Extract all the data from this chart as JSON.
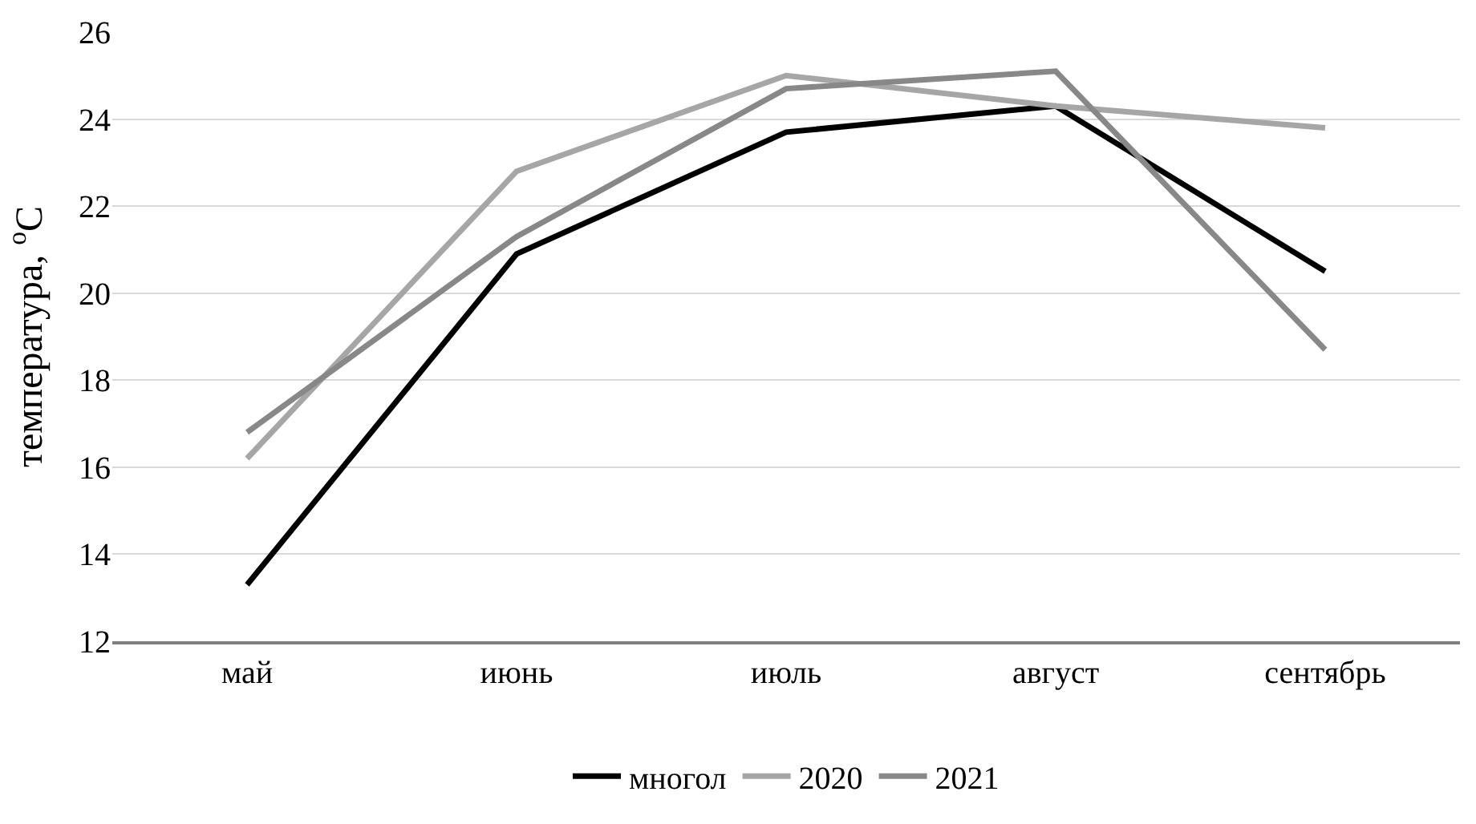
{
  "chart_data": {
    "type": "line",
    "ylabel": "температура, $^{о}$С",
    "categories": [
      "май",
      "июнь",
      "июль",
      "август",
      "сентябрь"
    ],
    "series": [
      {
        "name": "многол",
        "color": "#000000",
        "values": [
          13.3,
          20.9,
          23.7,
          24.3,
          20.5
        ]
      },
      {
        "name": "2020",
        "color": "#a6a6a6",
        "values": [
          16.2,
          22.8,
          25.0,
          24.3,
          23.8
        ]
      },
      {
        "name": "2021",
        "color": "#888888",
        "values": [
          16.8,
          21.3,
          24.7,
          25.1,
          18.7
        ]
      }
    ],
    "ylim": [
      12,
      26
    ],
    "yticks": [
      12,
      14,
      16,
      18,
      20,
      22,
      24,
      26
    ],
    "grid": "y",
    "legend": "bottom",
    "marker": "none",
    "line_style": "solid"
  }
}
